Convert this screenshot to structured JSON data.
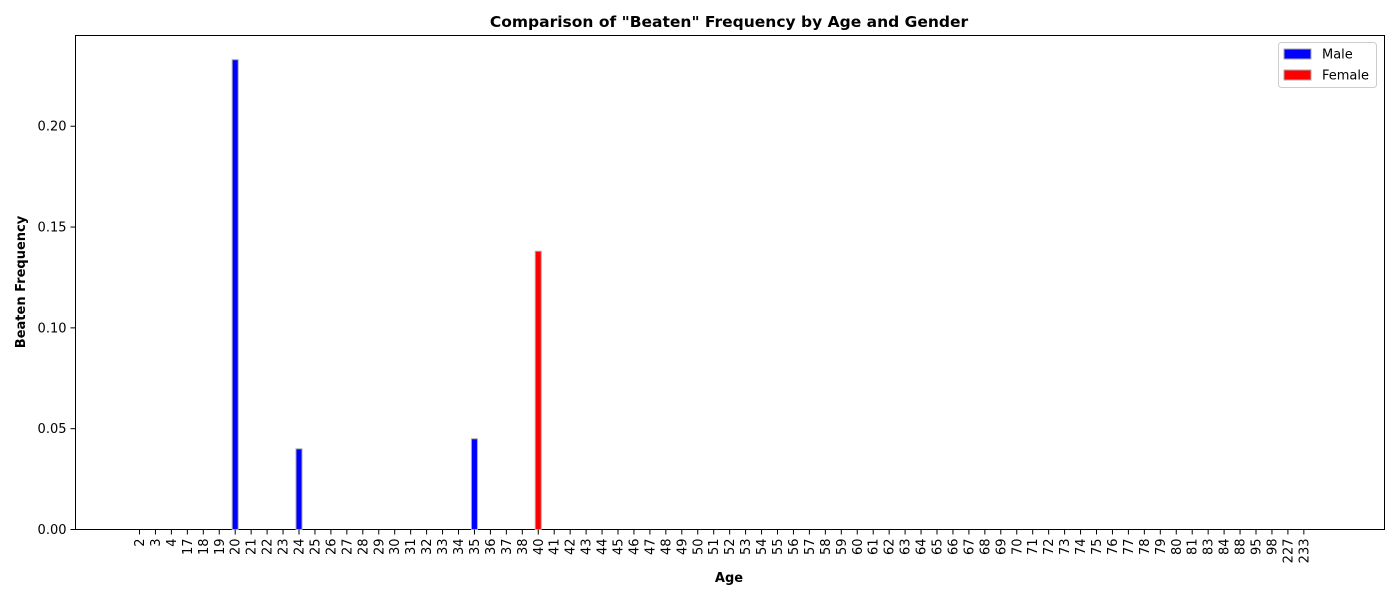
{
  "chart_data": {
    "type": "bar",
    "title": "Comparison of \"Beaten\" Frequency by Age and Gender",
    "xlabel": "Age",
    "ylabel": "Beaten Frequency",
    "ylim": [
      0,
      0.245
    ],
    "yticks": [
      "0.00",
      "0.05",
      "0.10",
      "0.15",
      "0.20"
    ],
    "categories": [
      "2",
      "3",
      "4",
      "17",
      "18",
      "19",
      "20",
      "21",
      "22",
      "23",
      "24",
      "25",
      "26",
      "27",
      "28",
      "29",
      "30",
      "31",
      "32",
      "33",
      "34",
      "35",
      "36",
      "37",
      "38",
      "40",
      "41",
      "42",
      "43",
      "44",
      "45",
      "46",
      "47",
      "48",
      "49",
      "50",
      "51",
      "52",
      "53",
      "54",
      "55",
      "56",
      "57",
      "58",
      "59",
      "60",
      "61",
      "62",
      "63",
      "64",
      "65",
      "66",
      "67",
      "68",
      "69",
      "70",
      "71",
      "72",
      "73",
      "74",
      "75",
      "76",
      "77",
      "78",
      "79",
      "80",
      "81",
      "83",
      "84",
      "88",
      "95",
      "98",
      "227",
      "233"
    ],
    "series": [
      {
        "name": "Male",
        "color": "#0000ff",
        "values": [
          0,
          0,
          0,
          0,
          0,
          0,
          0.233,
          0,
          0,
          0,
          0.04,
          0,
          0,
          0,
          0,
          0,
          0,
          0,
          0,
          0,
          0,
          0.045,
          0,
          0,
          0,
          0,
          0,
          0,
          0,
          0,
          0,
          0,
          0,
          0,
          0,
          0,
          0,
          0,
          0,
          0,
          0,
          0,
          0,
          0,
          0,
          0,
          0,
          0,
          0,
          0,
          0,
          0,
          0,
          0,
          0,
          0,
          0,
          0,
          0,
          0,
          0,
          0,
          0,
          0,
          0,
          0,
          0,
          0,
          0,
          0,
          0,
          0,
          0,
          0
        ]
      },
      {
        "name": "Female",
        "color": "#ff0000",
        "values": [
          0,
          0,
          0,
          0,
          0,
          0,
          0,
          0,
          0,
          0,
          0,
          0,
          0,
          0,
          0,
          0,
          0,
          0,
          0,
          0,
          0,
          0,
          0,
          0,
          0,
          0.138,
          0,
          0,
          0,
          0,
          0,
          0,
          0,
          0,
          0,
          0,
          0,
          0,
          0,
          0,
          0,
          0,
          0,
          0,
          0,
          0,
          0,
          0,
          0,
          0,
          0,
          0,
          0,
          0,
          0,
          0,
          0,
          0,
          0,
          0,
          0,
          0,
          0,
          0,
          0,
          0,
          0,
          0,
          0,
          0,
          0,
          0,
          0,
          0
        ]
      }
    ],
    "legend_position": "top-right",
    "grid": false
  }
}
